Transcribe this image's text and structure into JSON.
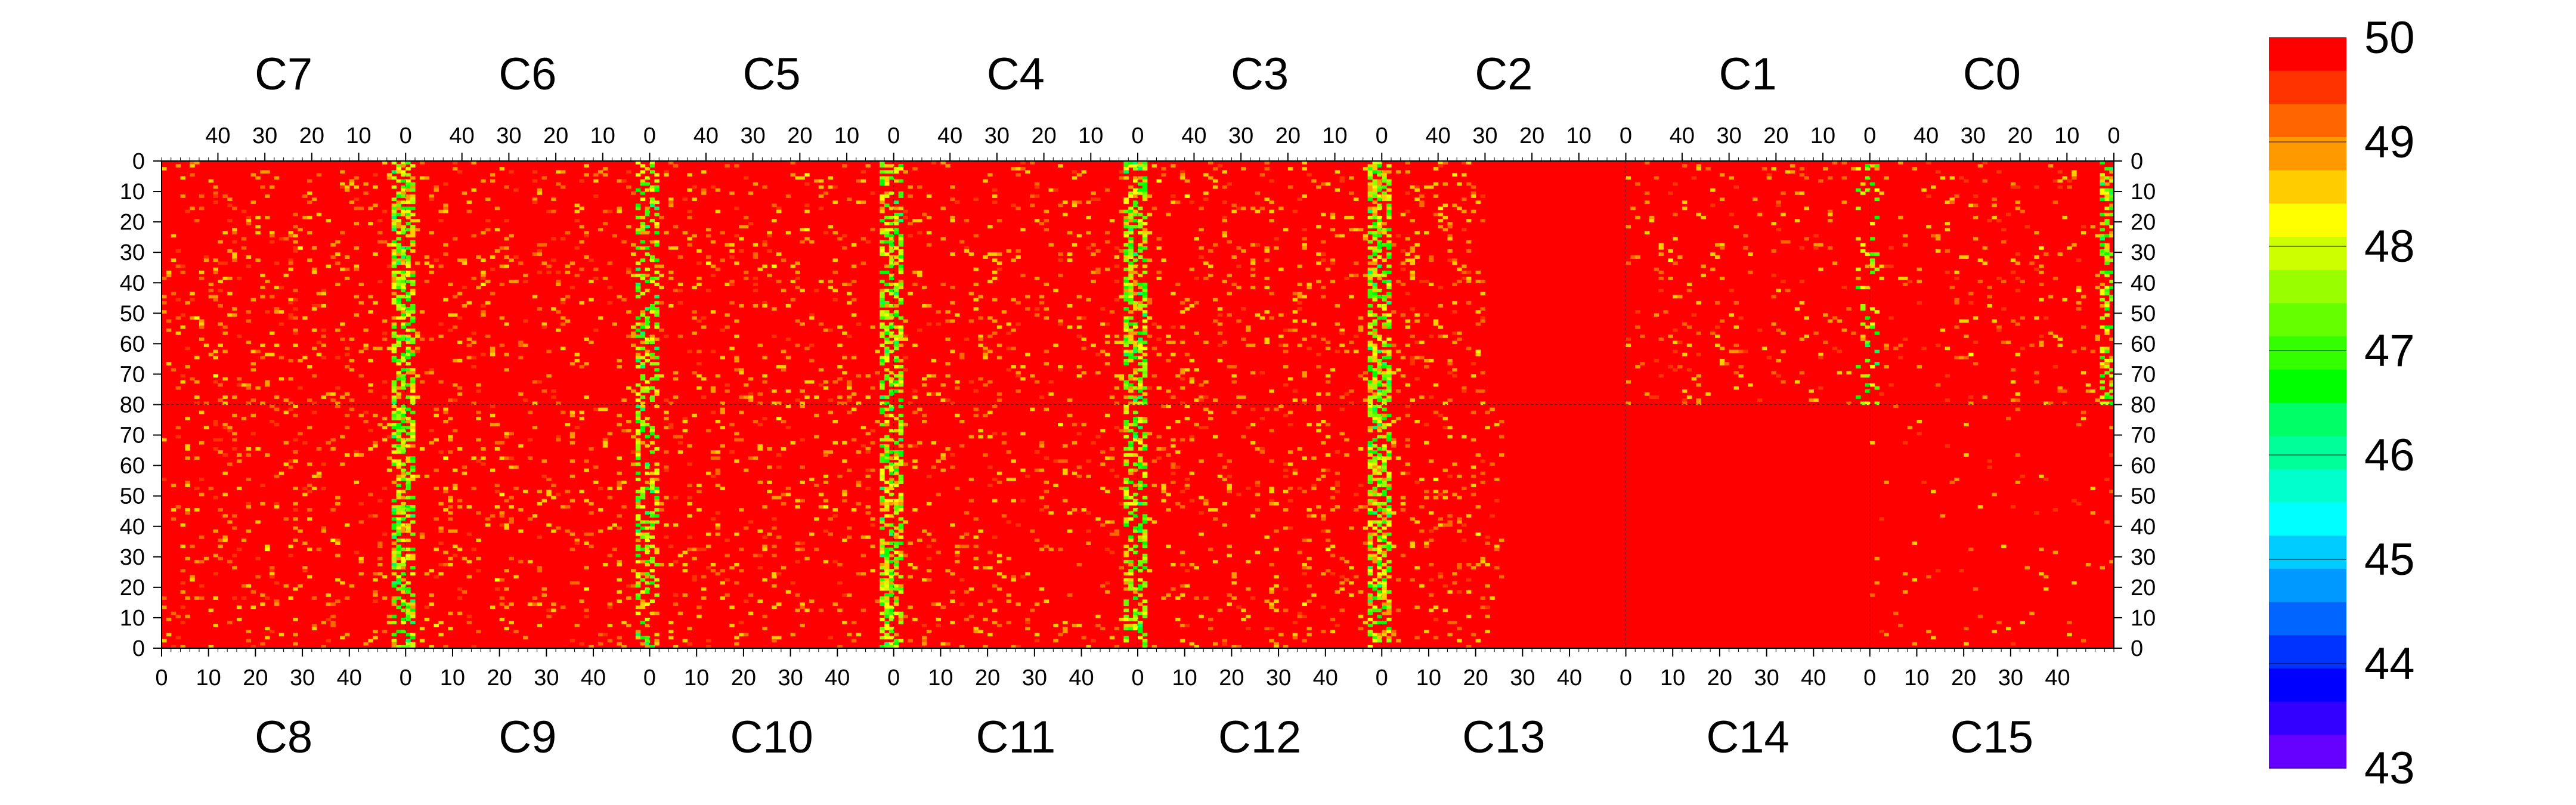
{
  "chart_data": {
    "type": "heatmap",
    "title": "",
    "grid": "two 8-chip rows × 8 columns, 52 cells wide each",
    "top_row": {
      "chip_labels": [
        "C7",
        "C6",
        "C5",
        "C4",
        "C3",
        "C2",
        "C1",
        "C0"
      ],
      "x_tick_values": [
        40,
        30,
        20,
        10,
        0
      ],
      "x_direction": "decreasing",
      "y_range": [
        0,
        80
      ],
      "y_tick_values": [
        0,
        10,
        20,
        30,
        40,
        50,
        60,
        70,
        80
      ]
    },
    "bottom_row": {
      "chip_labels": [
        "C8",
        "C9",
        "C10",
        "C11",
        "C12",
        "C13",
        "C14",
        "C15"
      ],
      "x_tick_values": [
        0,
        10,
        20,
        30,
        40
      ],
      "x_direction": "increasing",
      "y_range": [
        80,
        0
      ],
      "y_tick_values": [
        80,
        70,
        60,
        50,
        40,
        30,
        20,
        10,
        0
      ]
    },
    "cells_per_chip_x": 52,
    "cells_per_half_y": 80,
    "colorbar": {
      "range": [
        43,
        50
      ],
      "tick_values": [
        50,
        49,
        48,
        47,
        46,
        45,
        44,
        43
      ],
      "colors": [
        "#ff0000",
        "#ff3300",
        "#ff6600",
        "#ff9900",
        "#ffcc00",
        "#ffff00",
        "#ccff00",
        "#99ff00",
        "#66ff00",
        "#33ff00",
        "#00ff00",
        "#00ff66",
        "#00ff99",
        "#00ffcc",
        "#00ffff",
        "#00ccff",
        "#0099ff",
        "#0066ff",
        "#0033ff",
        "#0000ff",
        "#3300ff",
        "#6600ff"
      ]
    },
    "dominant_value": 50,
    "column_band_pattern": "dense lower-value cells (~47-49) appear near x=0 of each chip, strongest near the C7/C6, C4/C3, C3/C2 boundaries; C13, C14 and right half of C2 are almost uniformly 50"
  }
}
